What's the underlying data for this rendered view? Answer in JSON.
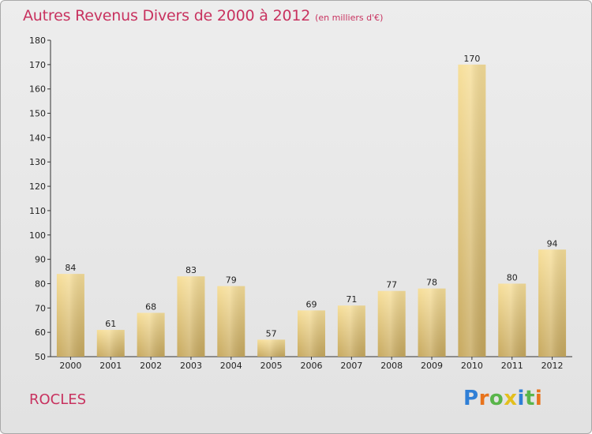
{
  "header": {
    "title": "Autres Revenus Divers de 2000 à 2012",
    "unit": "(en milliers d'€)"
  },
  "footer": {
    "place": "ROCLES",
    "logo_text": "Proxiti"
  },
  "colors": {
    "title": "#c8325f",
    "bar_light": "#f6dc95",
    "bar_dark": "#c9ac62",
    "background": "#e8e8e8"
  },
  "chart_data": {
    "type": "bar",
    "title": "Autres Revenus Divers de 2000 à 2012",
    "subtitle": "(en milliers d'€)",
    "xlabel": "",
    "ylabel": "",
    "categories": [
      "2000",
      "2001",
      "2002",
      "2003",
      "2004",
      "2005",
      "2006",
      "2007",
      "2008",
      "2009",
      "2010",
      "2011",
      "2012"
    ],
    "values": [
      84,
      61,
      68,
      83,
      79,
      57,
      69,
      71,
      77,
      78,
      170,
      80,
      94
    ],
    "ylim": [
      50,
      180
    ],
    "yticks": [
      50,
      60,
      70,
      80,
      90,
      100,
      110,
      120,
      130,
      140,
      150,
      160,
      170,
      180
    ],
    "grid": false,
    "legend": "none"
  }
}
